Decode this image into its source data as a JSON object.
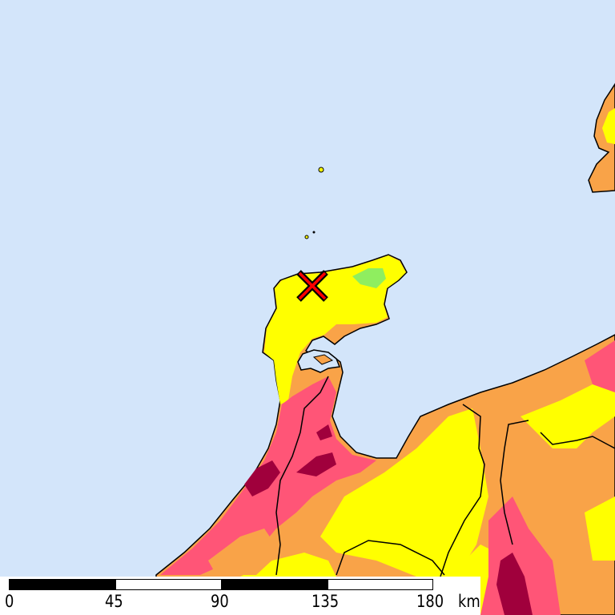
{
  "map": {
    "colors": {
      "sea": "#d3e5fa",
      "intensity_lowest": "#8fee5f",
      "intensity_low": "#ffff00",
      "intensity_mid": "#f9a348",
      "intensity_high": "#ff5577",
      "intensity_highest": "#a0003c",
      "epicenter": "#ff0000"
    },
    "epicenter_icon": "x-mark-icon"
  },
  "scale_bar": {
    "ticks": [
      "0",
      "45",
      "90",
      "135",
      "180"
    ],
    "unit": "km"
  }
}
